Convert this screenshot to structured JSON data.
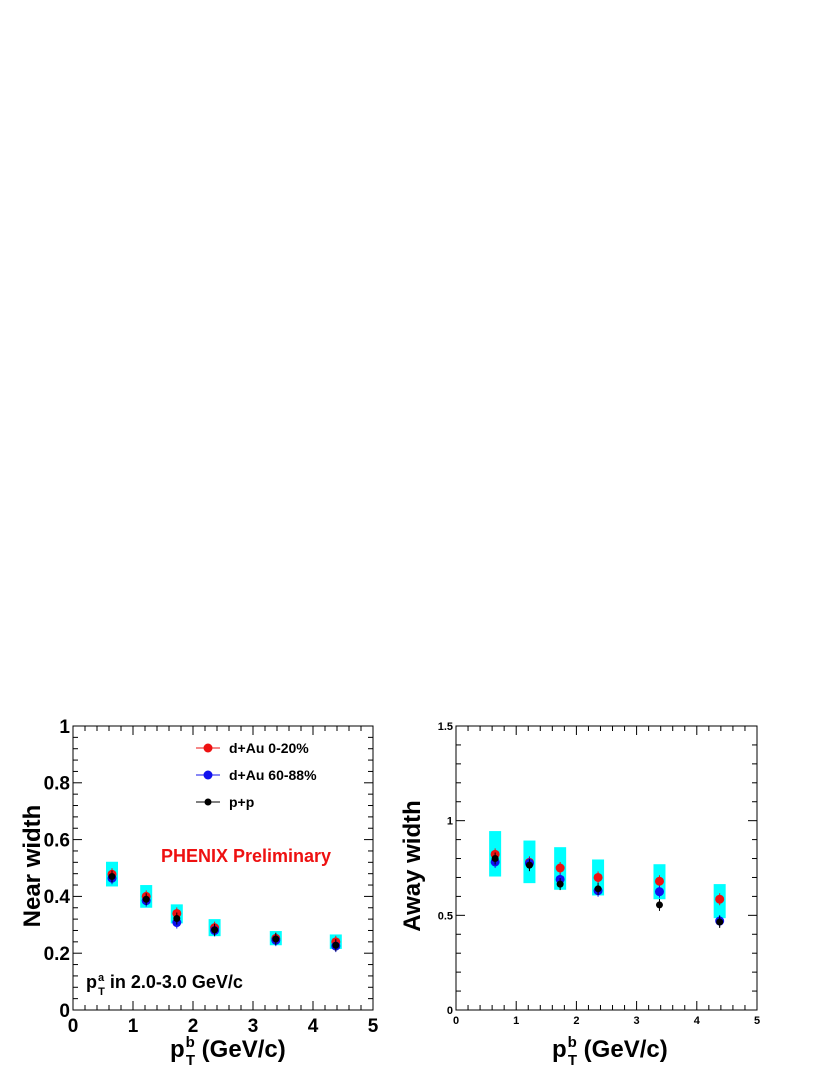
{
  "chart_data": [
    {
      "type": "scatter",
      "panel": "left",
      "xlabel_main": "p",
      "xlabel_sup": "b",
      "xlabel_sub": "T",
      "xlabel_unit": " (GeV/c)",
      "ylabel": "Near width",
      "xlim": [
        0,
        5
      ],
      "ylim": [
        0,
        1
      ],
      "xticks": [
        "0",
        "1",
        "2",
        "3",
        "4",
        "5"
      ],
      "yticks": [
        "0",
        "0.2",
        "0.4",
        "0.6",
        "0.8",
        "1"
      ],
      "annotation": "PHENIX Preliminary",
      "annotation_color": "#ee1111",
      "condition": {
        "main": "p",
        "sup": "a",
        "sub": "T",
        "text": " in 2.0-3.0 GeV/c"
      },
      "legend": [
        {
          "name": "d+Au 0-20%",
          "color": "#ee1111"
        },
        {
          "name": "d+Au 60-88%",
          "color": "#1111ee"
        },
        {
          "name": "p+p",
          "color": "#000000"
        }
      ],
      "systematics_color": "#00ffff",
      "series": [
        {
          "name": "d+Au 0-20%",
          "color": "#ee1111",
          "x": [
            0.65,
            1.22,
            1.73,
            2.36,
            3.38,
            4.38
          ],
          "y": [
            0.478,
            0.4,
            0.34,
            0.29,
            0.252,
            0.24
          ],
          "sys_low": [
            0.435,
            0.36,
            0.305,
            0.26,
            0.228,
            0.215
          ],
          "sys_high": [
            0.522,
            0.44,
            0.372,
            0.32,
            0.278,
            0.266
          ]
        },
        {
          "name": "d+Au 60-88%",
          "color": "#1111ee",
          "x": [
            0.65,
            1.22,
            1.73,
            2.36,
            3.38,
            4.38
          ],
          "y": [
            0.464,
            0.385,
            0.308,
            0.28,
            0.246,
            0.225
          ]
        },
        {
          "name": "p+p",
          "color": "#000000",
          "x": [
            0.65,
            1.22,
            1.73,
            2.36,
            3.38,
            4.38
          ],
          "y": [
            0.47,
            0.39,
            0.322,
            0.282,
            0.25,
            0.228
          ]
        }
      ]
    },
    {
      "type": "scatter",
      "panel": "right",
      "xlabel_main": "p",
      "xlabel_sup": "b",
      "xlabel_sub": "T",
      "xlabel_unit": " (GeV/c)",
      "ylabel": "Away width",
      "xlim": [
        0,
        5
      ],
      "ylim": [
        0,
        1.5
      ],
      "xticks": [
        "0",
        "1",
        "2",
        "3",
        "4",
        "5"
      ],
      "yticks": [
        "0",
        "0.5",
        "1",
        "1.5"
      ],
      "systematics_color": "#00ffff",
      "series": [
        {
          "name": "d+Au 0-20%",
          "color": "#ee1111",
          "x": [
            0.65,
            1.22,
            1.73,
            2.36,
            3.38,
            4.38
          ],
          "y": [
            0.822,
            0.78,
            0.75,
            0.7,
            0.68,
            0.585
          ],
          "sys_low": [
            0.705,
            0.67,
            0.635,
            0.605,
            0.585,
            0.485
          ],
          "sys_high": [
            0.945,
            0.895,
            0.86,
            0.795,
            0.77,
            0.665
          ]
        },
        {
          "name": "d+Au 60-88%",
          "color": "#1111ee",
          "x": [
            0.65,
            1.22,
            1.73,
            2.36,
            3.38,
            4.38
          ],
          "y": [
            0.782,
            0.775,
            0.69,
            0.63,
            0.625,
            0.47
          ]
        },
        {
          "name": "p+p",
          "color": "#000000",
          "x": [
            0.65,
            1.22,
            1.73,
            2.36,
            3.38,
            4.38
          ],
          "y": [
            0.8,
            0.765,
            0.665,
            0.64,
            0.555,
            0.465
          ]
        }
      ]
    }
  ]
}
